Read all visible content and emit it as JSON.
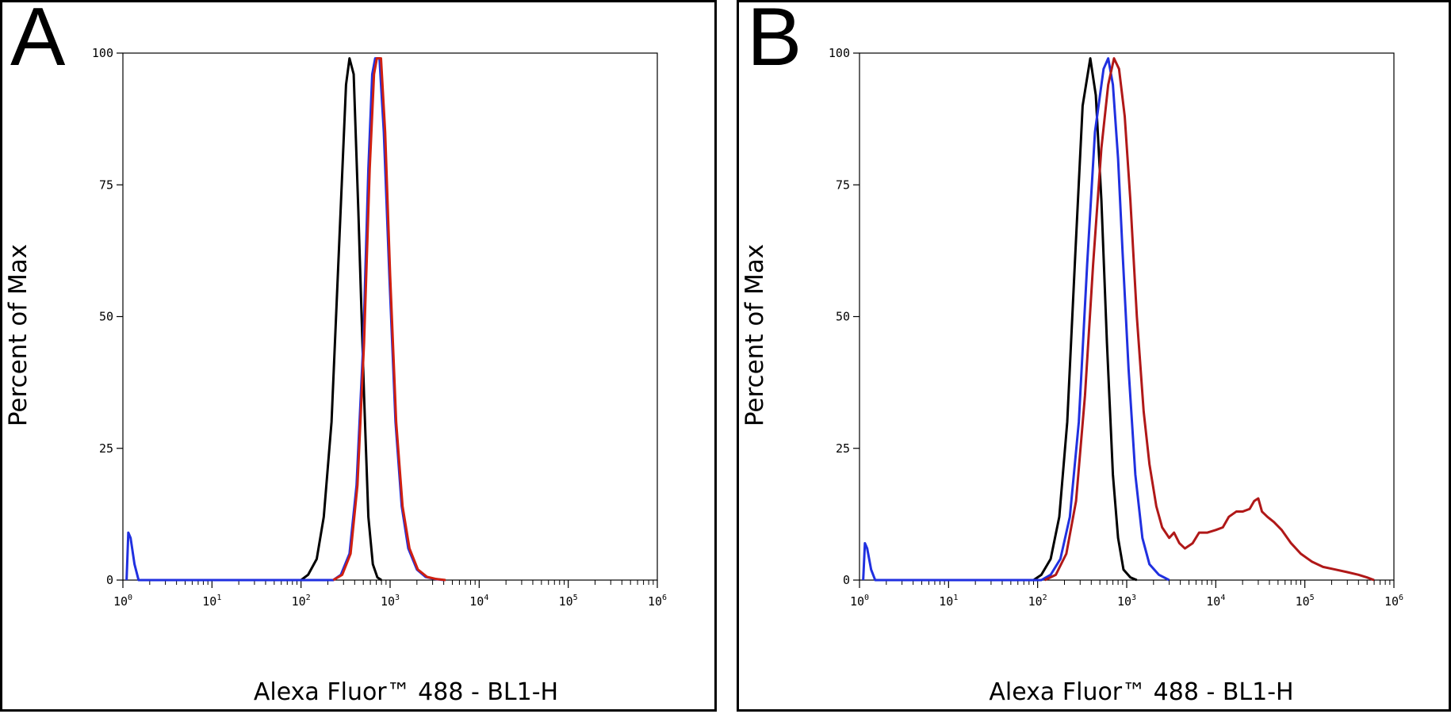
{
  "chart_data": [
    {
      "type": "line",
      "panel_label": "A",
      "xlabel": "Alexa Fluor™ 488 - BL1-H",
      "ylabel": "Percent of Max",
      "xscale": "log",
      "xlim": [
        1,
        1000000
      ],
      "ylim": [
        0,
        100
      ],
      "yticks": [
        0,
        25,
        50,
        75,
        100
      ],
      "xticks": [
        {
          "base": "10",
          "exp": "0"
        },
        {
          "base": "10",
          "exp": "1"
        },
        {
          "base": "10",
          "exp": "2"
        },
        {
          "base": "10",
          "exp": "3"
        },
        {
          "base": "10",
          "exp": "4"
        },
        {
          "base": "10",
          "exp": "5"
        },
        {
          "base": "10",
          "exp": "6"
        }
      ],
      "grid": false,
      "series": [
        {
          "color": "#000000",
          "points": [
            [
              100,
              0
            ],
            [
              120,
              1
            ],
            [
              150,
              4
            ],
            [
              180,
              12
            ],
            [
              220,
              30
            ],
            [
              270,
              65
            ],
            [
              320,
              94
            ],
            [
              350,
              99
            ],
            [
              390,
              96
            ],
            [
              440,
              70
            ],
            [
              510,
              35
            ],
            [
              570,
              12
            ],
            [
              640,
              3
            ],
            [
              720,
              0.5
            ],
            [
              800,
              0
            ]
          ]
        },
        {
          "color": "#2030e0",
          "points": [
            [
              1.1,
              0
            ],
            [
              1.15,
              9
            ],
            [
              1.22,
              8
            ],
            [
              1.35,
              3
            ],
            [
              1.5,
              0
            ],
            [
              230,
              0
            ],
            [
              280,
              1
            ],
            [
              350,
              5
            ],
            [
              420,
              18
            ],
            [
              500,
              45
            ],
            [
              570,
              78
            ],
            [
              630,
              96
            ],
            [
              680,
              99
            ],
            [
              760,
              99
            ],
            [
              850,
              85
            ],
            [
              980,
              58
            ],
            [
              1150,
              30
            ],
            [
              1350,
              14
            ],
            [
              1600,
              6
            ],
            [
              2000,
              2
            ],
            [
              2500,
              0.6
            ],
            [
              3200,
              0.2
            ],
            [
              4000,
              0
            ]
          ]
        },
        {
          "color": "#d02010",
          "points": [
            [
              230,
              0
            ],
            [
              290,
              1
            ],
            [
              360,
              5
            ],
            [
              430,
              18
            ],
            [
              510,
              45
            ],
            [
              590,
              78
            ],
            [
              660,
              96
            ],
            [
              710,
              99
            ],
            [
              790,
              99
            ],
            [
              880,
              85
            ],
            [
              1000,
              58
            ],
            [
              1170,
              30
            ],
            [
              1380,
              14
            ],
            [
              1650,
              6
            ],
            [
              2050,
              2
            ],
            [
              2600,
              0.6
            ],
            [
              3300,
              0.2
            ],
            [
              4200,
              0
            ]
          ]
        }
      ]
    },
    {
      "type": "line",
      "panel_label": "B",
      "xlabel": "Alexa Fluor™ 488 - BL1-H",
      "ylabel": "Percent of Max",
      "xscale": "log",
      "xlim": [
        1,
        1000000
      ],
      "ylim": [
        0,
        100
      ],
      "yticks": [
        0,
        25,
        50,
        75,
        100
      ],
      "xticks": [
        {
          "base": "10",
          "exp": "0"
        },
        {
          "base": "10",
          "exp": "1"
        },
        {
          "base": "10",
          "exp": "2"
        },
        {
          "base": "10",
          "exp": "3"
        },
        {
          "base": "10",
          "exp": "4"
        },
        {
          "base": "10",
          "exp": "5"
        },
        {
          "base": "10",
          "exp": "6"
        }
      ],
      "grid": false,
      "series": [
        {
          "color": "#000000",
          "points": [
            [
              90,
              0
            ],
            [
              110,
              1
            ],
            [
              140,
              4
            ],
            [
              175,
              12
            ],
            [
              215,
              30
            ],
            [
              265,
              62
            ],
            [
              320,
              90
            ],
            [
              390,
              99
            ],
            [
              450,
              92
            ],
            [
              520,
              72
            ],
            [
              600,
              45
            ],
            [
              700,
              20
            ],
            [
              800,
              8
            ],
            [
              920,
              2
            ],
            [
              1100,
              0.5
            ],
            [
              1300,
              0
            ]
          ]
        },
        {
          "color": "#2030e0",
          "points": [
            [
              1.1,
              0
            ],
            [
              1.15,
              7
            ],
            [
              1.22,
              6
            ],
            [
              1.35,
              2
            ],
            [
              1.5,
              0
            ],
            [
              110,
              0
            ],
            [
              140,
              1
            ],
            [
              180,
              4
            ],
            [
              230,
              12
            ],
            [
              290,
              30
            ],
            [
              360,
              60
            ],
            [
              440,
              85
            ],
            [
              550,
              97
            ],
            [
              620,
              99
            ],
            [
              700,
              94
            ],
            [
              800,
              80
            ],
            [
              900,
              62
            ],
            [
              1050,
              40
            ],
            [
              1250,
              20
            ],
            [
              1500,
              8
            ],
            [
              1800,
              3
            ],
            [
              2300,
              1
            ],
            [
              3000,
              0
            ]
          ]
        },
        {
          "color": "#b01818",
          "points": [
            [
              120,
              0
            ],
            [
              160,
              1
            ],
            [
              210,
              5
            ],
            [
              270,
              15
            ],
            [
              340,
              35
            ],
            [
              420,
              60
            ],
            [
              520,
              82
            ],
            [
              620,
              94
            ],
            [
              720,
              99
            ],
            [
              820,
              97
            ],
            [
              950,
              88
            ],
            [
              1100,
              72
            ],
            [
              1300,
              50
            ],
            [
              1550,
              32
            ],
            [
              1800,
              22
            ],
            [
              2150,
              14
            ],
            [
              2500,
              10
            ],
            [
              3000,
              8
            ],
            [
              3400,
              9
            ],
            [
              3900,
              7
            ],
            [
              4500,
              6
            ],
            [
              5500,
              7
            ],
            [
              6500,
              9
            ],
            [
              8000,
              9
            ],
            [
              10000,
              9.5
            ],
            [
              12000,
              10
            ],
            [
              14000,
              12
            ],
            [
              17000,
              13
            ],
            [
              20000,
              13
            ],
            [
              24000,
              13.5
            ],
            [
              27000,
              15
            ],
            [
              30000,
              15.5
            ],
            [
              33000,
              13
            ],
            [
              38000,
              12
            ],
            [
              45000,
              11
            ],
            [
              55000,
              9.5
            ],
            [
              70000,
              7
            ],
            [
              90000,
              5
            ],
            [
              120000,
              3.5
            ],
            [
              160000,
              2.5
            ],
            [
              220000,
              2
            ],
            [
              300000,
              1.5
            ],
            [
              400000,
              1
            ],
            [
              500000,
              0.5
            ],
            [
              600000,
              0
            ]
          ]
        }
      ]
    }
  ]
}
